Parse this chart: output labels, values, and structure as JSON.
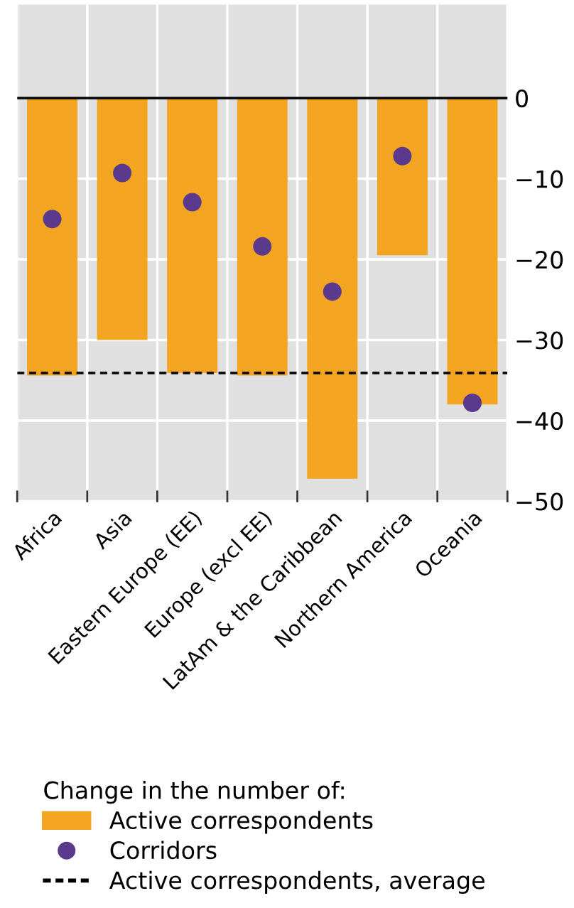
{
  "chart_data": {
    "type": "bar",
    "categories": [
      "Africa",
      "Asia",
      "Eastern Europe (EE)",
      "Europe (excl EE)",
      "LatAm & the Caribbean",
      "Northern America",
      "Oceania"
    ],
    "series": [
      {
        "name": "Active correspondents",
        "color": "#f3a521",
        "values": [
          -34.4,
          -30.0,
          -34.1,
          -34.4,
          -47.2,
          -19.5,
          -38.0
        ]
      },
      {
        "name": "Corridors",
        "type": "scatter",
        "color": "#5b3a8e",
        "x": [
          "Africa",
          "Asia",
          "Eastern Europe (EE)",
          "Europe (excl EE)",
          "LatAm & the Caribbean",
          "Northern America",
          "Oceania"
        ],
        "values": [
          -15.0,
          -9.3,
          -12.9,
          -18.4,
          -24.0,
          -7.2,
          -37.8
        ]
      }
    ],
    "ref_lines": [
      {
        "axis": "y",
        "value": -34.1,
        "label": "Active correspondents, average",
        "color": "#000000",
        "line_style": "dashed"
      }
    ],
    "legend_title": "Change in the number of:",
    "ylim": [
      -50,
      11.6
    ],
    "yticks": [
      {
        "value": -50,
        "label": "−50"
      },
      {
        "value": -40,
        "label": "−40"
      },
      {
        "value": -30,
        "label": "−30"
      },
      {
        "value": -20,
        "label": "−20"
      },
      {
        "value": -10,
        "label": "−10"
      },
      0
    ],
    "grid": true,
    "legend": "bottom",
    "marker": "circle"
  }
}
